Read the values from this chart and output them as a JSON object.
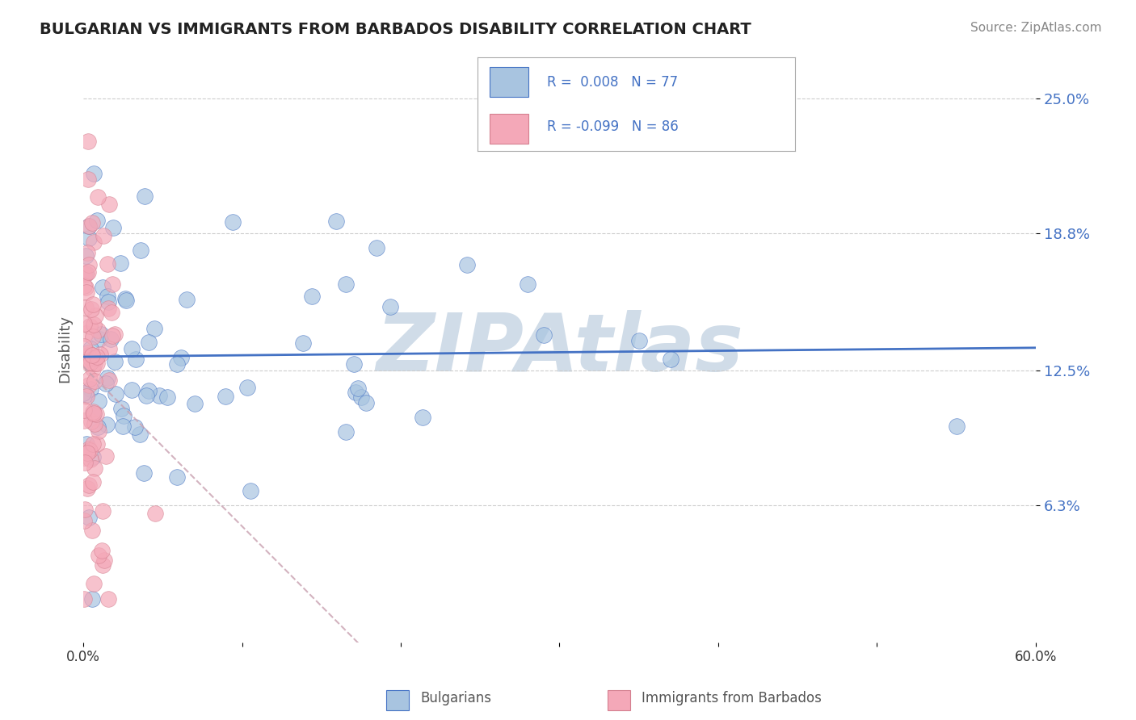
{
  "title": "BULGARIAN VS IMMIGRANTS FROM BARBADOS DISABILITY CORRELATION CHART",
  "source": "Source: ZipAtlas.com",
  "ylabel": "Disability",
  "y_ticks": [
    0.063,
    0.125,
    0.188,
    0.25
  ],
  "y_tick_labels": [
    "6.3%",
    "12.5%",
    "18.8%",
    "25.0%"
  ],
  "xlim": [
    0.0,
    0.6
  ],
  "ylim": [
    0.0,
    0.27
  ],
  "blue_color": "#a8c4e0",
  "pink_color": "#f4a8b8",
  "trend_blue": "#4472c4",
  "trend_pink": "#c8a0b0",
  "background": "#ffffff",
  "watermark": "ZIPAtlas",
  "watermark_color": "#d0dce8"
}
